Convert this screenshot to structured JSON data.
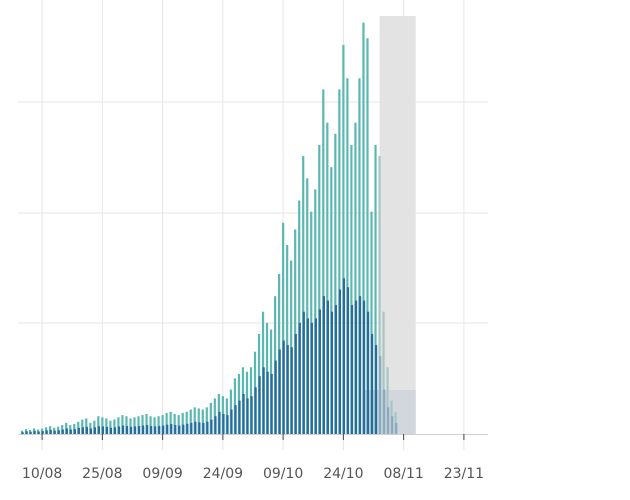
{
  "chart_data": {
    "type": "bar",
    "title": "",
    "xlabel": "",
    "ylabel": "",
    "grid": true,
    "colors": {
      "series_1": "#5bb8b0",
      "series_2": "#2a6a9e",
      "projection_band": "#e3e3e3",
      "projection_bar_light": "#a7c6c2",
      "projection_bar_dark": "#8aa8c0",
      "gridline": "#e6e6e6",
      "tick_text": "#555555"
    },
    "x_ticks": [
      "10/08",
      "25/08",
      "09/09",
      "24/09",
      "09/10",
      "24/10",
      "08/11",
      "23/11"
    ],
    "x_range": [
      "04/08",
      "29/11"
    ],
    "ylim": [
      0,
      1.88
    ],
    "shaded_region": {
      "from": "02/11",
      "to": "11/11"
    },
    "series": [
      {
        "values": [
          0.015,
          0.022,
          0.018,
          0.025,
          0.02,
          0.024,
          0.03,
          0.035,
          0.028,
          0.033,
          0.04,
          0.05,
          0.04,
          0.045,
          0.055,
          0.065,
          0.07,
          0.05,
          0.06,
          0.08,
          0.075,
          0.07,
          0.06,
          0.065,
          0.075,
          0.085,
          0.08,
          0.07,
          0.075,
          0.08,
          0.085,
          0.09,
          0.08,
          0.075,
          0.08,
          0.085,
          0.095,
          0.1,
          0.09,
          0.085,
          0.095,
          0.1,
          0.11,
          0.12,
          0.115,
          0.11,
          0.12,
          0.14,
          0.16,
          0.18,
          0.17,
          0.16,
          0.2,
          0.25,
          0.27,
          0.3,
          0.28,
          0.3,
          0.37,
          0.45,
          0.55,
          0.5,
          0.47,
          0.62,
          0.72,
          0.95,
          0.85,
          0.78,
          0.92,
          1.05,
          1.25,
          1.15,
          1.0,
          1.1,
          1.3,
          1.55,
          1.4,
          1.2,
          1.35,
          1.55,
          1.75,
          1.6,
          1.3,
          1.4,
          1.6,
          1.85,
          1.78,
          1.0,
          1.3,
          1.25,
          0.55,
          0.3,
          0.15,
          0.1
        ]
      },
      {
        "values": [
          0.008,
          0.012,
          0.01,
          0.014,
          0.011,
          0.013,
          0.016,
          0.018,
          0.015,
          0.017,
          0.02,
          0.025,
          0.02,
          0.022,
          0.028,
          0.03,
          0.032,
          0.025,
          0.03,
          0.035,
          0.034,
          0.032,
          0.028,
          0.03,
          0.034,
          0.038,
          0.036,
          0.032,
          0.034,
          0.036,
          0.038,
          0.04,
          0.036,
          0.034,
          0.036,
          0.038,
          0.042,
          0.045,
          0.04,
          0.038,
          0.042,
          0.046,
          0.05,
          0.055,
          0.052,
          0.05,
          0.055,
          0.065,
          0.08,
          0.1,
          0.09,
          0.085,
          0.11,
          0.13,
          0.15,
          0.18,
          0.16,
          0.17,
          0.21,
          0.26,
          0.3,
          0.28,
          0.27,
          0.33,
          0.38,
          0.42,
          0.4,
          0.39,
          0.45,
          0.5,
          0.55,
          0.52,
          0.5,
          0.52,
          0.56,
          0.62,
          0.6,
          0.55,
          0.58,
          0.65,
          0.7,
          0.66,
          0.58,
          0.6,
          0.62,
          0.6,
          0.55,
          0.45,
          0.4,
          0.35,
          0.2,
          0.12,
          0.08,
          0.05
        ]
      }
    ]
  }
}
